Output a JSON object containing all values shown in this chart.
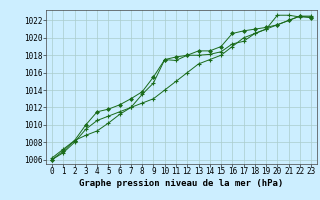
{
  "title": "Graphe pression niveau de la mer (hPa)",
  "background_color": "#cceeff",
  "grid_color": "#aacccc",
  "line_color": "#1a6b1a",
  "xlim": [
    -0.5,
    23.5
  ],
  "ylim": [
    1005.5,
    1023.2
  ],
  "yticks": [
    1006,
    1008,
    1010,
    1012,
    1014,
    1016,
    1018,
    1020,
    1022
  ],
  "xticks": [
    0,
    1,
    2,
    3,
    4,
    5,
    6,
    7,
    8,
    9,
    10,
    11,
    12,
    13,
    14,
    15,
    16,
    17,
    18,
    19,
    20,
    21,
    22,
    23
  ],
  "series1_x": [
    0,
    1,
    2,
    3,
    4,
    5,
    6,
    7,
    8,
    9,
    10,
    11,
    12,
    13,
    14,
    15,
    16,
    17,
    18,
    19,
    20,
    21,
    22,
    23
  ],
  "series1_y": [
    1006.2,
    1007.2,
    1008.2,
    1008.8,
    1009.3,
    1010.2,
    1011.2,
    1012.0,
    1013.5,
    1014.8,
    1017.5,
    1017.4,
    1018.0,
    1018.0,
    1018.1,
    1018.4,
    1019.3,
    1019.6,
    1020.5,
    1021.0,
    1022.6,
    1022.6,
    1022.4,
    1022.4
  ],
  "series2_x": [
    0,
    1,
    2,
    3,
    4,
    5,
    6,
    7,
    8,
    9,
    10,
    11,
    12,
    13,
    14,
    15,
    16,
    17,
    18,
    19,
    20,
    21,
    22,
    23
  ],
  "series2_y": [
    1006.0,
    1006.8,
    1008.0,
    1009.5,
    1010.5,
    1011.0,
    1011.5,
    1012.0,
    1012.5,
    1013.0,
    1014.0,
    1015.0,
    1016.0,
    1017.0,
    1017.5,
    1018.0,
    1019.0,
    1020.0,
    1020.5,
    1021.0,
    1021.5,
    1022.0,
    1022.5,
    1022.5
  ],
  "series3_x": [
    0,
    1,
    2,
    3,
    4,
    5,
    6,
    7,
    8,
    9,
    10,
    11,
    12,
    13,
    14,
    15,
    16,
    17,
    18,
    19,
    20,
    21,
    22,
    23
  ],
  "series3_y": [
    1006.0,
    1007.0,
    1008.2,
    1010.0,
    1011.5,
    1011.8,
    1012.3,
    1013.0,
    1013.8,
    1015.5,
    1017.5,
    1017.8,
    1018.0,
    1018.5,
    1018.5,
    1019.0,
    1020.5,
    1020.8,
    1021.0,
    1021.2,
    1021.5,
    1022.0,
    1022.5,
    1022.3
  ],
  "tick_fontsize": 5.5,
  "label_fontsize": 6.5
}
